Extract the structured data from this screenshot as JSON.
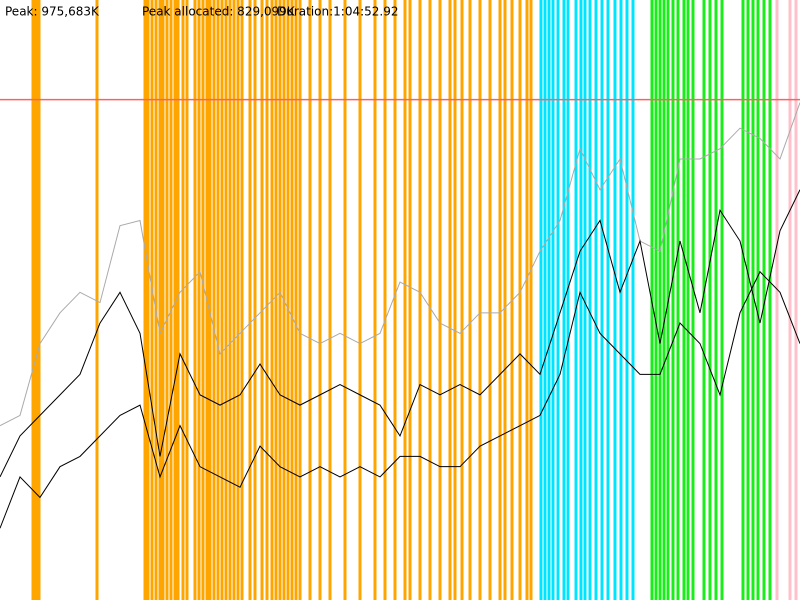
{
  "chart_data": {
    "type": "line",
    "header": [
      "Peak: 975,683K",
      "Peak allocated: 829,099K",
      "Duration:1:04:52.92"
    ],
    "peak_line": {
      "value": 975683,
      "color": "#ff6060"
    },
    "xlim": [
      0,
      800
    ],
    "ylim": [
      0,
      1170000
    ],
    "x": [
      0,
      20,
      40,
      60,
      80,
      100,
      120,
      140,
      160,
      180,
      200,
      220,
      240,
      260,
      280,
      300,
      320,
      340,
      360,
      380,
      400,
      420,
      440,
      460,
      480,
      500,
      520,
      540,
      560,
      580,
      600,
      620,
      640,
      660,
      680,
      700,
      720,
      740,
      760,
      780,
      800
    ],
    "series": [
      {
        "color": "#aaaaaa",
        "values": [
          340000,
          360000,
          500000,
          560000,
          600000,
          580000,
          730000,
          740000,
          520000,
          600000,
          640000,
          480000,
          520000,
          560000,
          600000,
          520000,
          500000,
          520000,
          500000,
          520000,
          620000,
          600000,
          540000,
          520000,
          560000,
          560000,
          600000,
          680000,
          740000,
          880000,
          800000,
          860000,
          700000,
          680000,
          860000,
          860000,
          880000,
          920000,
          900000,
          860000,
          970000
        ]
      },
      {
        "color": "#000000",
        "values": [
          240000,
          320000,
          360000,
          400000,
          440000,
          540000,
          600000,
          520000,
          280000,
          480000,
          400000,
          380000,
          400000,
          460000,
          400000,
          380000,
          400000,
          420000,
          400000,
          380000,
          320000,
          420000,
          400000,
          420000,
          400000,
          440000,
          480000,
          440000,
          560000,
          680000,
          740000,
          600000,
          700000,
          500000,
          700000,
          560000,
          760000,
          700000,
          540000,
          720000,
          800000
        ]
      },
      {
        "color": "#000000",
        "values": [
          140000,
          240000,
          200000,
          260000,
          280000,
          320000,
          360000,
          380000,
          240000,
          340000,
          260000,
          240000,
          220000,
          300000,
          260000,
          240000,
          260000,
          240000,
          260000,
          240000,
          280000,
          280000,
          260000,
          260000,
          300000,
          320000,
          340000,
          360000,
          440000,
          600000,
          520000,
          480000,
          440000,
          440000,
          540000,
          500000,
          400000,
          560000,
          640000,
          600000,
          500000
        ]
      }
    ],
    "event_groups": [
      {
        "color": "#ffa500",
        "x": [
          33,
          35,
          37,
          39,
          97,
          145,
          148,
          152,
          156,
          160,
          163,
          167,
          171,
          175,
          178,
          183,
          187,
          195,
          199,
          203,
          207,
          210,
          214,
          218,
          222,
          226,
          230,
          234,
          238,
          242,
          250,
          255,
          262,
          267,
          272,
          276,
          280,
          284,
          288,
          292,
          296,
          300,
          310,
          320,
          330,
          345,
          360,
          375,
          385,
          395,
          405,
          410,
          420,
          430,
          440,
          450,
          455,
          462,
          470,
          480,
          490,
          500,
          505,
          512,
          520,
          527,
          531
        ]
      },
      {
        "color": "#00e5ff",
        "x": [
          541,
          545,
          549,
          553,
          558,
          564,
          568,
          576,
          581,
          585,
          590,
          596,
          602,
          608,
          615,
          621,
          627,
          633
        ]
      },
      {
        "color": "#1aee1a",
        "x": [
          652,
          656,
          660,
          664,
          668,
          673,
          678,
          684,
          688,
          693,
          704,
          710,
          716,
          722,
          743,
          748,
          753,
          758,
          764,
          770
        ]
      },
      {
        "color": "#ffc0cb",
        "x": [
          777,
          790,
          796
        ]
      }
    ]
  }
}
